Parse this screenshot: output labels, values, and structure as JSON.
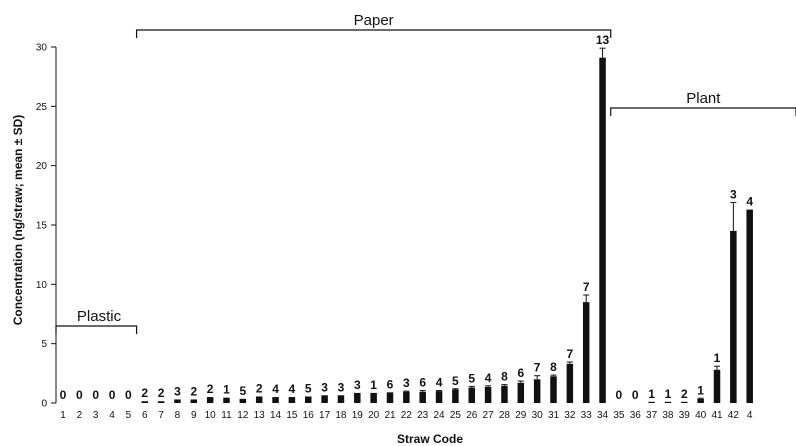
{
  "chart_data": {
    "type": "bar",
    "xlabel": "Straw Code",
    "ylabel": "Concentration (ng/straw; mean ± SD)",
    "ylim": [
      0,
      30
    ],
    "yticks": [
      0,
      5,
      10,
      15,
      20,
      25,
      30
    ],
    "grid": false,
    "categories": [
      "1",
      "2",
      "3",
      "4",
      "5",
      "6",
      "7",
      "8",
      "9",
      "10",
      "11",
      "12",
      "13",
      "14",
      "15",
      "16",
      "17",
      "18",
      "19",
      "20",
      "21",
      "22",
      "23",
      "24",
      "25",
      "26",
      "27",
      "28",
      "29",
      "30",
      "31",
      "32",
      "33",
      "34",
      "35",
      "36",
      "37",
      "38",
      "39",
      "40",
      "41",
      "42",
      "4"
    ],
    "values": [
      0,
      0,
      0,
      0,
      0,
      0.15,
      0.15,
      0.3,
      0.3,
      0.5,
      0.45,
      0.35,
      0.55,
      0.5,
      0.5,
      0.55,
      0.65,
      0.65,
      0.85,
      0.85,
      0.9,
      0.95,
      0.95,
      1.0,
      1.15,
      1.3,
      1.35,
      1.45,
      1.7,
      2.0,
      2.25,
      3.3,
      8.5,
      29.1,
      0,
      0,
      0.1,
      0.1,
      0.1,
      0.35,
      2.8,
      14.5,
      16.3
    ],
    "errors": [
      0,
      0,
      0,
      0,
      0,
      0,
      0,
      0,
      0,
      0,
      0,
      0,
      0,
      0,
      0,
      0,
      0,
      0,
      0,
      0,
      0,
      0.05,
      0.1,
      0.05,
      0.05,
      0.1,
      0.1,
      0.1,
      0.15,
      0.3,
      0.1,
      0.15,
      0.6,
      0.8,
      0,
      0,
      0,
      0,
      0,
      0.05,
      0.3,
      2.4,
      0
    ],
    "count_labels": [
      "0",
      "0",
      "0",
      "0",
      "0",
      "2",
      "2",
      "3",
      "2",
      "2",
      "1",
      "5",
      "2",
      "4",
      "4",
      "5",
      "3",
      "3",
      "3",
      "1",
      "6",
      "3",
      "6",
      "4",
      "5",
      "5",
      "4",
      "8",
      "6",
      "7",
      "8",
      "7",
      "7",
      "13",
      "0",
      "0",
      "1",
      "1",
      "2",
      "1",
      "1",
      "3",
      "4"
    ],
    "groups": [
      {
        "label": "Plastic",
        "from": 1,
        "to": 5
      },
      {
        "label": "Paper",
        "from": 6,
        "to": 34
      },
      {
        "label": "Plant",
        "from": 35,
        "to": 43
      }
    ]
  }
}
